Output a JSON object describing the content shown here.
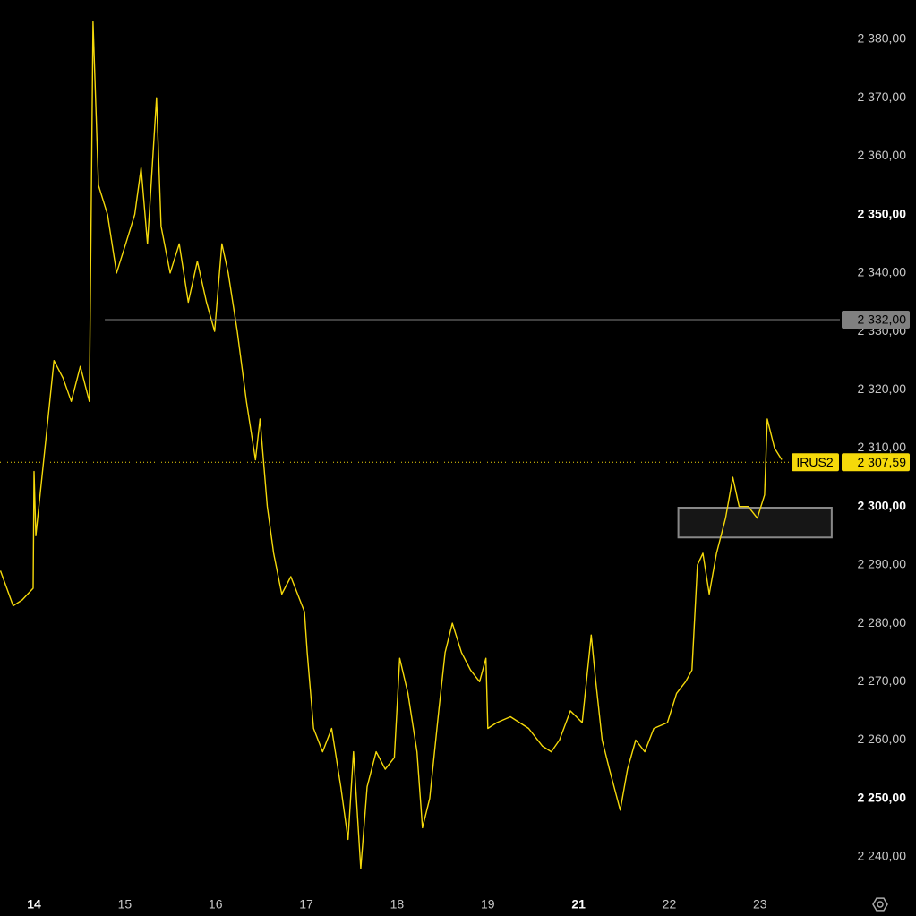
{
  "chart_data": {
    "type": "line",
    "color": "#f5d90a",
    "xlim": [
      -0.375,
      8.88
    ],
    "ylim": [
      2235.7,
      2386.75
    ],
    "xticks": [
      {
        "value": 0,
        "label": "14",
        "bold": true
      },
      {
        "value": 1,
        "label": "15"
      },
      {
        "value": 2,
        "label": "16"
      },
      {
        "value": 3,
        "label": "17"
      },
      {
        "value": 4,
        "label": "18"
      },
      {
        "value": 5,
        "label": "19"
      },
      {
        "value": 6,
        "label": "21",
        "bold": true
      },
      {
        "value": 7,
        "label": "22"
      },
      {
        "value": 8,
        "label": "23"
      }
    ],
    "yticks": [
      {
        "value": 2380,
        "label": "2 380,00"
      },
      {
        "value": 2370,
        "label": "2 370,00"
      },
      {
        "value": 2360,
        "label": "2 360,00"
      },
      {
        "value": 2350,
        "label": "2 350,00",
        "bold": true
      },
      {
        "value": 2340,
        "label": "2 340,00"
      },
      {
        "value": 2330,
        "label": "2 330,00"
      },
      {
        "value": 2320,
        "label": "2 320,00"
      },
      {
        "value": 2310,
        "label": "2 310,00"
      },
      {
        "value": 2300,
        "label": "2 300,00",
        "bold": true
      },
      {
        "value": 2290,
        "label": "2 290,00"
      },
      {
        "value": 2280,
        "label": "2 280,00"
      },
      {
        "value": 2270,
        "label": "2 270,00"
      },
      {
        "value": 2260,
        "label": "2 260,00"
      },
      {
        "value": 2250,
        "label": "2 250,00",
        "bold": true
      },
      {
        "value": 2240,
        "label": "2 240,00"
      }
    ],
    "x": [
      -0.37,
      -0.23,
      -0.13,
      -0.01,
      0.0,
      0.02,
      0.12,
      0.22,
      0.32,
      0.41,
      0.51,
      0.61,
      0.65,
      0.71,
      0.81,
      0.91,
      1.01,
      1.11,
      1.18,
      1.25,
      1.35,
      1.4,
      1.5,
      1.6,
      1.7,
      1.8,
      1.9,
      1.99,
      2.07,
      2.14,
      2.24,
      2.34,
      2.44,
      2.49,
      2.57,
      2.64,
      2.73,
      2.83,
      2.98,
      3.01,
      3.08,
      3.18,
      3.28,
      3.38,
      3.46,
      3.52,
      3.6,
      3.67,
      3.77,
      3.87,
      3.97,
      4.03,
      4.12,
      4.22,
      4.28,
      4.36,
      4.46,
      4.53,
      4.61,
      4.71,
      4.81,
      4.91,
      4.98,
      5.0,
      5.1,
      5.25,
      5.45,
      5.6,
      5.7,
      5.79,
      5.91,
      6.04,
      6.14,
      6.19,
      6.26,
      6.34,
      6.46,
      6.54,
      6.63,
      6.73,
      6.83,
      6.98,
      7.08,
      7.18,
      7.25,
      7.31,
      7.37,
      7.44,
      7.52,
      7.62,
      7.7,
      7.77,
      7.87,
      7.97,
      8.05,
      8.08,
      8.16,
      8.24
    ],
    "values": [
      2289,
      2283,
      2284,
      2286,
      2306,
      2295,
      2310,
      2325,
      2322,
      2318,
      2324,
      2318,
      2383,
      2355,
      2350,
      2340,
      2345,
      2350,
      2358,
      2345,
      2370,
      2348,
      2340,
      2345,
      2335,
      2342,
      2335,
      2330,
      2345,
      2340,
      2330,
      2318,
      2308,
      2315,
      2300,
      2292,
      2285,
      2288,
      2282,
      2275,
      2262,
      2258,
      2262,
      2252,
      2243,
      2258,
      2238,
      2252,
      2258,
      2255,
      2257,
      2274,
      2268,
      2258,
      2245,
      2250,
      2265,
      2275,
      2280,
      2275,
      2272,
      2270,
      2274,
      2262,
      2263,
      2264,
      2262,
      2259,
      2258,
      2260,
      2265,
      2263,
      2278,
      2270,
      2260,
      2255,
      2248,
      2255,
      2260,
      2258,
      2262,
      2263,
      2268,
      2270,
      2272,
      2290,
      2292,
      2285,
      2292,
      2298,
      2305,
      2300,
      2300,
      2298,
      2302,
      2315,
      2310,
      2308
    ],
    "price_lines": [
      {
        "value": 2332,
        "label": "2 332,00",
        "color": "#808080",
        "x_start": 0.78,
        "style": "solid"
      },
      {
        "value": 2307.59,
        "name": "IRUS2",
        "label": "2 307,59",
        "color": "#f5d90a",
        "style": "dotted"
      }
    ],
    "zone": {
      "x": [
        7.1,
        8.79
      ],
      "y": [
        2299.8,
        2294.7
      ]
    }
  }
}
